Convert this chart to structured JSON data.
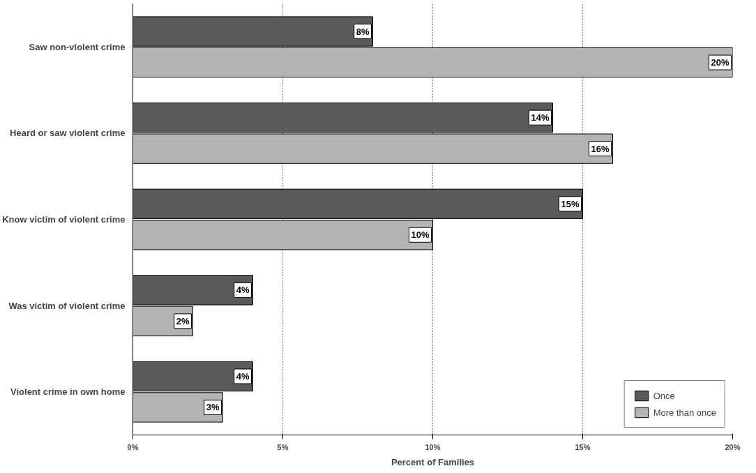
{
  "chart_data": {
    "type": "bar",
    "orientation": "horizontal",
    "xlabel": "Percent of Families",
    "categories": [
      "Saw non-violent crime",
      "Heard or saw violent crime",
      "Know victim of violent crime",
      "Was victim of violent crime",
      "Violent crime in own home"
    ],
    "series": [
      {
        "name": "Once",
        "color": "#5a5a5a",
        "values": [
          8,
          14,
          15,
          4,
          4
        ],
        "value_labels": [
          "8%",
          "14%",
          "15%",
          "4%",
          "4%"
        ]
      },
      {
        "name": "More than once",
        "color": "#b4b4b4",
        "values": [
          20,
          16,
          10,
          2,
          3
        ],
        "value_labels": [
          "20%",
          "16%",
          "10%",
          "2%",
          "3%"
        ]
      }
    ],
    "xlim": [
      0,
      20
    ],
    "xticks": [
      {
        "value": 0,
        "label": "0%"
      },
      {
        "value": 5,
        "label": "5%"
      },
      {
        "value": 10,
        "label": "10%"
      },
      {
        "value": 15,
        "label": "15%"
      },
      {
        "value": 20,
        "label": "20%"
      }
    ],
    "grid": "x",
    "legend": "bottom right"
  }
}
